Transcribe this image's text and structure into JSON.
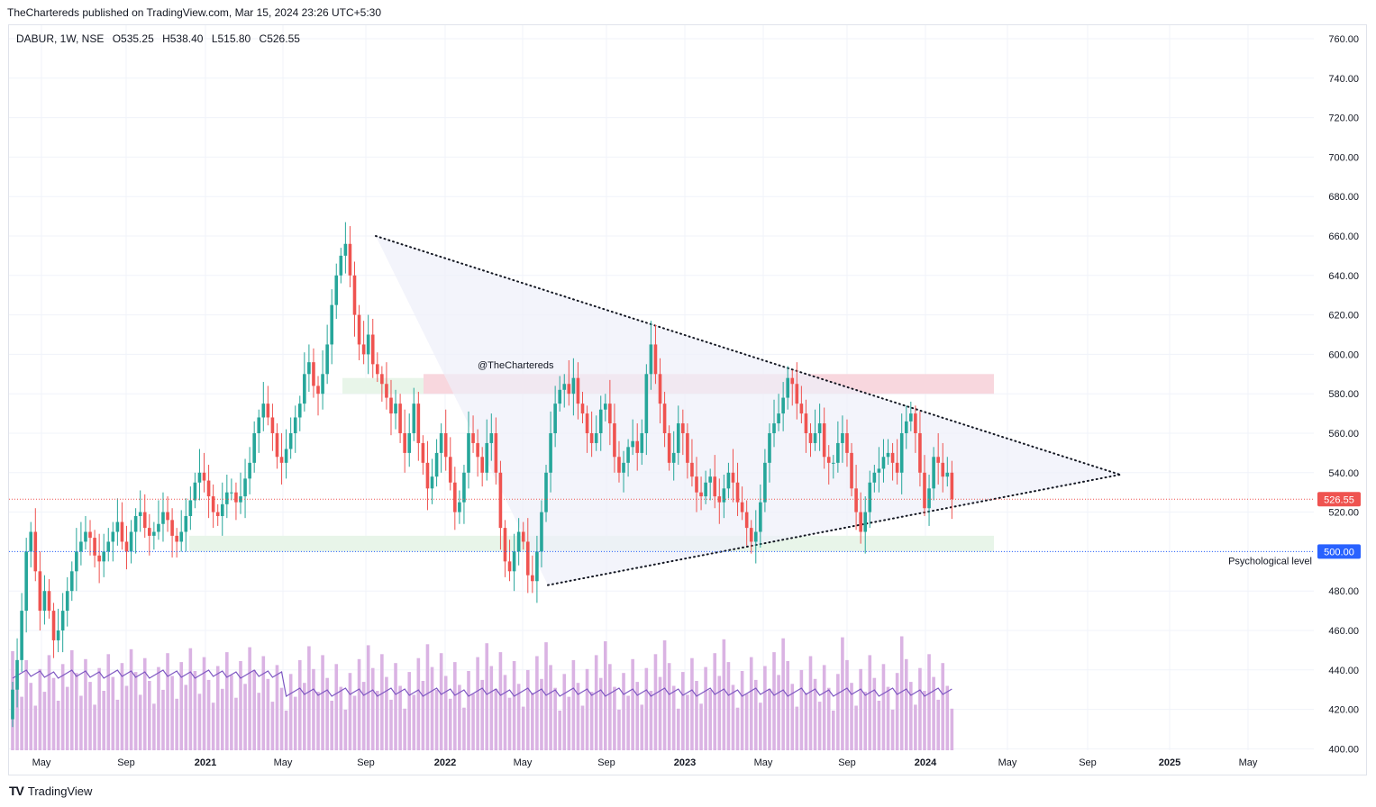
{
  "header": {
    "published": "TheChartereds published on TradingView.com, Mar 15, 2024 23:26 UTC+5:30"
  },
  "legend": {
    "symbol": "DABUR, 1W, NSE",
    "open": "O535.25",
    "high": "H538.40",
    "low": "L515.80",
    "close": "C526.55"
  },
  "watermark": "@TheChartereds",
  "footer": {
    "brand": "TradingView"
  },
  "colors": {
    "up": "#26a69a",
    "down": "#ef5350",
    "volume": "#dab3e3",
    "volume_ma": "#7e57c2",
    "price_line": "#ef5350",
    "support_line": "#2962ff",
    "resistance_zone": "#f8d7de",
    "support_zone": "#e8f5e9",
    "triangle_fill": "#eef0f9"
  },
  "chart_data": {
    "type": "candlestick",
    "symbol": "DABUR",
    "interval": "1W",
    "exchange": "NSE",
    "y_ticks": [
      "760.00",
      "740.00",
      "720.00",
      "700.00",
      "680.00",
      "660.00",
      "640.00",
      "620.00",
      "600.00",
      "580.00",
      "560.00",
      "540.00",
      "520.00",
      "500.00",
      "480.00",
      "460.00",
      "440.00",
      "420.00",
      "400.00"
    ],
    "ylim": [
      400,
      770
    ],
    "x_ticks": [
      "May",
      "Sep",
      "2021",
      "May",
      "Sep",
      "2022",
      "May",
      "Sep",
      "2023",
      "May",
      "Sep",
      "2024",
      "May",
      "Sep",
      "2025",
      "May"
    ],
    "last_price": {
      "value": 526.55,
      "label": "526.55"
    },
    "psych_level": {
      "value": 500,
      "label": "500.00",
      "text": "Psychological level"
    },
    "resistance_zone": [
      580,
      590
    ],
    "support_zone": [
      500,
      508
    ],
    "early_support_zone": [
      580,
      588
    ],
    "triangle": {
      "top_start": {
        "date": "2021-10",
        "price": 660
      },
      "bottom_start": {
        "date": "2022-06",
        "price": 483
      },
      "apex": {
        "date": "2024-10",
        "price": 539
      }
    },
    "closes": [
      430,
      445,
      470,
      500,
      510,
      490,
      470,
      480,
      470,
      455,
      460,
      470,
      480,
      490,
      500,
      505,
      510,
      507,
      498,
      495,
      500,
      505,
      510,
      515,
      505,
      500,
      510,
      518,
      520,
      512,
      508,
      510,
      514,
      520,
      516,
      508,
      505,
      510,
      518,
      526,
      535,
      540,
      536,
      528,
      520,
      518,
      524,
      530,
      530,
      525,
      528,
      537,
      545,
      560,
      568,
      575,
      568,
      560,
      548,
      545,
      552,
      560,
      568,
      575,
      590,
      596,
      584,
      580,
      590,
      605,
      625,
      640,
      650,
      656,
      640,
      620,
      605,
      600,
      610,
      595,
      590,
      585,
      578,
      570,
      575,
      560,
      550,
      560,
      575,
      555,
      545,
      532,
      538,
      550,
      560,
      548,
      535,
      520,
      525,
      540,
      560,
      555,
      548,
      540,
      555,
      560,
      540,
      512,
      495,
      490,
      500,
      510,
      505,
      488,
      485,
      500,
      520,
      540,
      560,
      575,
      582,
      585,
      580,
      588,
      575,
      570,
      560,
      555,
      560,
      572,
      575,
      565,
      548,
      540,
      545,
      553,
      556,
      550,
      560,
      590,
      605,
      590,
      575,
      560,
      545,
      550,
      565,
      560,
      545,
      538,
      530,
      528,
      535,
      538,
      528,
      525,
      532,
      540,
      535,
      525,
      520,
      512,
      505,
      510,
      525,
      545,
      560,
      565,
      570,
      578,
      588,
      585,
      575,
      570,
      560,
      555,
      560,
      565,
      548,
      545,
      545,
      555,
      560,
      550,
      532,
      520,
      510,
      520,
      535,
      540,
      542,
      548,
      550,
      545,
      540,
      560,
      566,
      570,
      560,
      540,
      522,
      532,
      548,
      545,
      538,
      540,
      526.55
    ],
    "volume_ma_note": "Volume bars with moving average overlay"
  }
}
